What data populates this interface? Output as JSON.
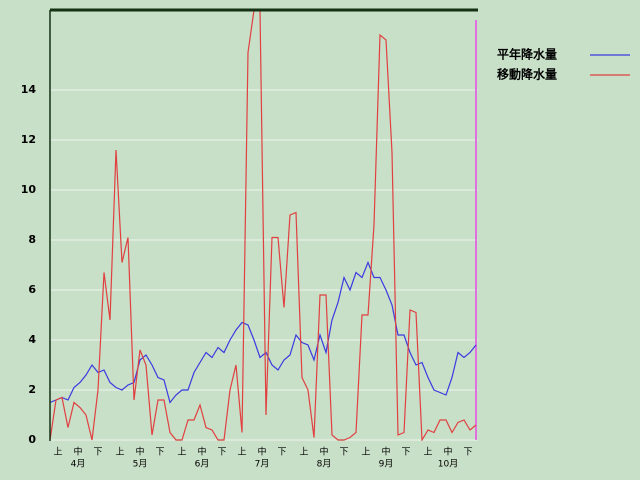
{
  "chart_data": {
    "type": "line",
    "x": [
      0,
      3,
      6,
      9,
      12,
      15,
      18,
      21,
      24,
      27,
      30,
      33,
      36,
      39,
      42,
      45,
      48,
      51,
      54,
      57,
      60,
      63,
      66,
      69,
      72,
      75,
      78,
      81,
      84,
      87,
      90,
      93,
      96,
      99,
      102,
      105,
      108,
      111,
      114,
      117,
      120,
      123,
      126,
      129,
      132,
      135,
      138,
      141,
      144,
      147,
      150,
      153,
      156,
      159,
      162,
      165,
      168,
      171,
      174,
      177,
      180,
      183,
      186,
      189,
      192,
      195,
      198,
      201,
      204,
      207,
      210,
      213
    ],
    "series": [
      {
        "name": "平年降水量",
        "color": "#3a3ae0",
        "values": [
          1.5,
          1.6,
          1.7,
          1.6,
          2.1,
          2.3,
          2.6,
          3.0,
          2.7,
          2.8,
          2.3,
          2.1,
          2.0,
          2.2,
          2.3,
          3.2,
          3.4,
          3.0,
          2.5,
          2.4,
          1.5,
          1.8,
          2.0,
          2.0,
          2.7,
          3.1,
          3.5,
          3.3,
          3.7,
          3.5,
          4.0,
          4.4,
          4.7,
          4.6,
          4.0,
          3.3,
          3.5,
          3.0,
          2.8,
          3.2,
          3.4,
          4.2,
          3.9,
          3.8,
          3.2,
          4.2,
          3.5,
          4.8,
          5.5,
          6.5,
          6.0,
          6.7,
          6.5,
          7.1,
          6.5,
          6.5,
          6.0,
          5.4,
          4.2,
          4.2,
          3.5,
          3.0,
          3.1,
          2.5,
          2.0,
          1.9,
          1.8,
          2.5,
          3.5,
          3.3,
          3.5,
          3.8
        ]
      },
      {
        "name": "移動降水量",
        "color": "#e04040",
        "values": [
          0,
          1.6,
          1.7,
          0.5,
          1.5,
          1.3,
          1.0,
          0,
          2.0,
          6.7,
          4.8,
          11.6,
          7.1,
          8.1,
          1.6,
          3.6,
          3.0,
          0.2,
          1.6,
          1.6,
          0.3,
          0,
          0,
          0.8,
          0.8,
          1.4,
          0.5,
          0.4,
          0,
          0,
          2.0,
          3.0,
          0.3,
          15.5,
          17.2,
          17.2,
          1.0,
          8.1,
          8.1,
          5.3,
          9.0,
          9.1,
          2.5,
          2.0,
          0.1,
          5.8,
          5.8,
          0.2,
          0,
          0,
          0.1,
          0.3,
          5.0,
          5.0,
          8.6,
          16.2,
          16.0,
          11.5,
          0.2,
          0.3,
          5.2,
          5.1,
          0,
          0.4,
          0.3,
          0.8,
          0.8,
          0.3,
          0.7,
          0.8,
          0.4,
          0.6
        ]
      }
    ],
    "xlim": [
      0,
      214
    ],
    "xticks": [
      {
        "value": 4,
        "label": "上"
      },
      {
        "value": 14,
        "label": "中"
      },
      {
        "value": 24,
        "label": "下"
      },
      {
        "value": 35,
        "label": "上"
      },
      {
        "value": 45,
        "label": "中"
      },
      {
        "value": 55,
        "label": "下"
      },
      {
        "value": 66,
        "label": "上"
      },
      {
        "value": 76,
        "label": "中"
      },
      {
        "value": 86,
        "label": "下"
      },
      {
        "value": 96,
        "label": "上"
      },
      {
        "value": 106,
        "label": "中"
      },
      {
        "value": 116,
        "label": "下"
      },
      {
        "value": 127,
        "label": "上"
      },
      {
        "value": 137,
        "label": "中"
      },
      {
        "value": 147,
        "label": "下"
      },
      {
        "value": 158,
        "label": "上"
      },
      {
        "value": 168,
        "label": "中"
      },
      {
        "value": 178,
        "label": "下"
      },
      {
        "value": 189,
        "label": "上"
      },
      {
        "value": 199,
        "label": "中"
      },
      {
        "value": 209,
        "label": "下"
      }
    ],
    "months": [
      {
        "value": 14,
        "label": "4月"
      },
      {
        "value": 45,
        "label": "5月"
      },
      {
        "value": 76,
        "label": "6月"
      },
      {
        "value": 106,
        "label": "7月"
      },
      {
        "value": 137,
        "label": "8月"
      },
      {
        "value": 168,
        "label": "9月"
      },
      {
        "value": 199,
        "label": "10月"
      }
    ],
    "ylim": [
      0,
      17.2
    ],
    "yticks": [
      0,
      2,
      4,
      6,
      8,
      10,
      12,
      14
    ],
    "grid": true,
    "legend": "top-right"
  }
}
